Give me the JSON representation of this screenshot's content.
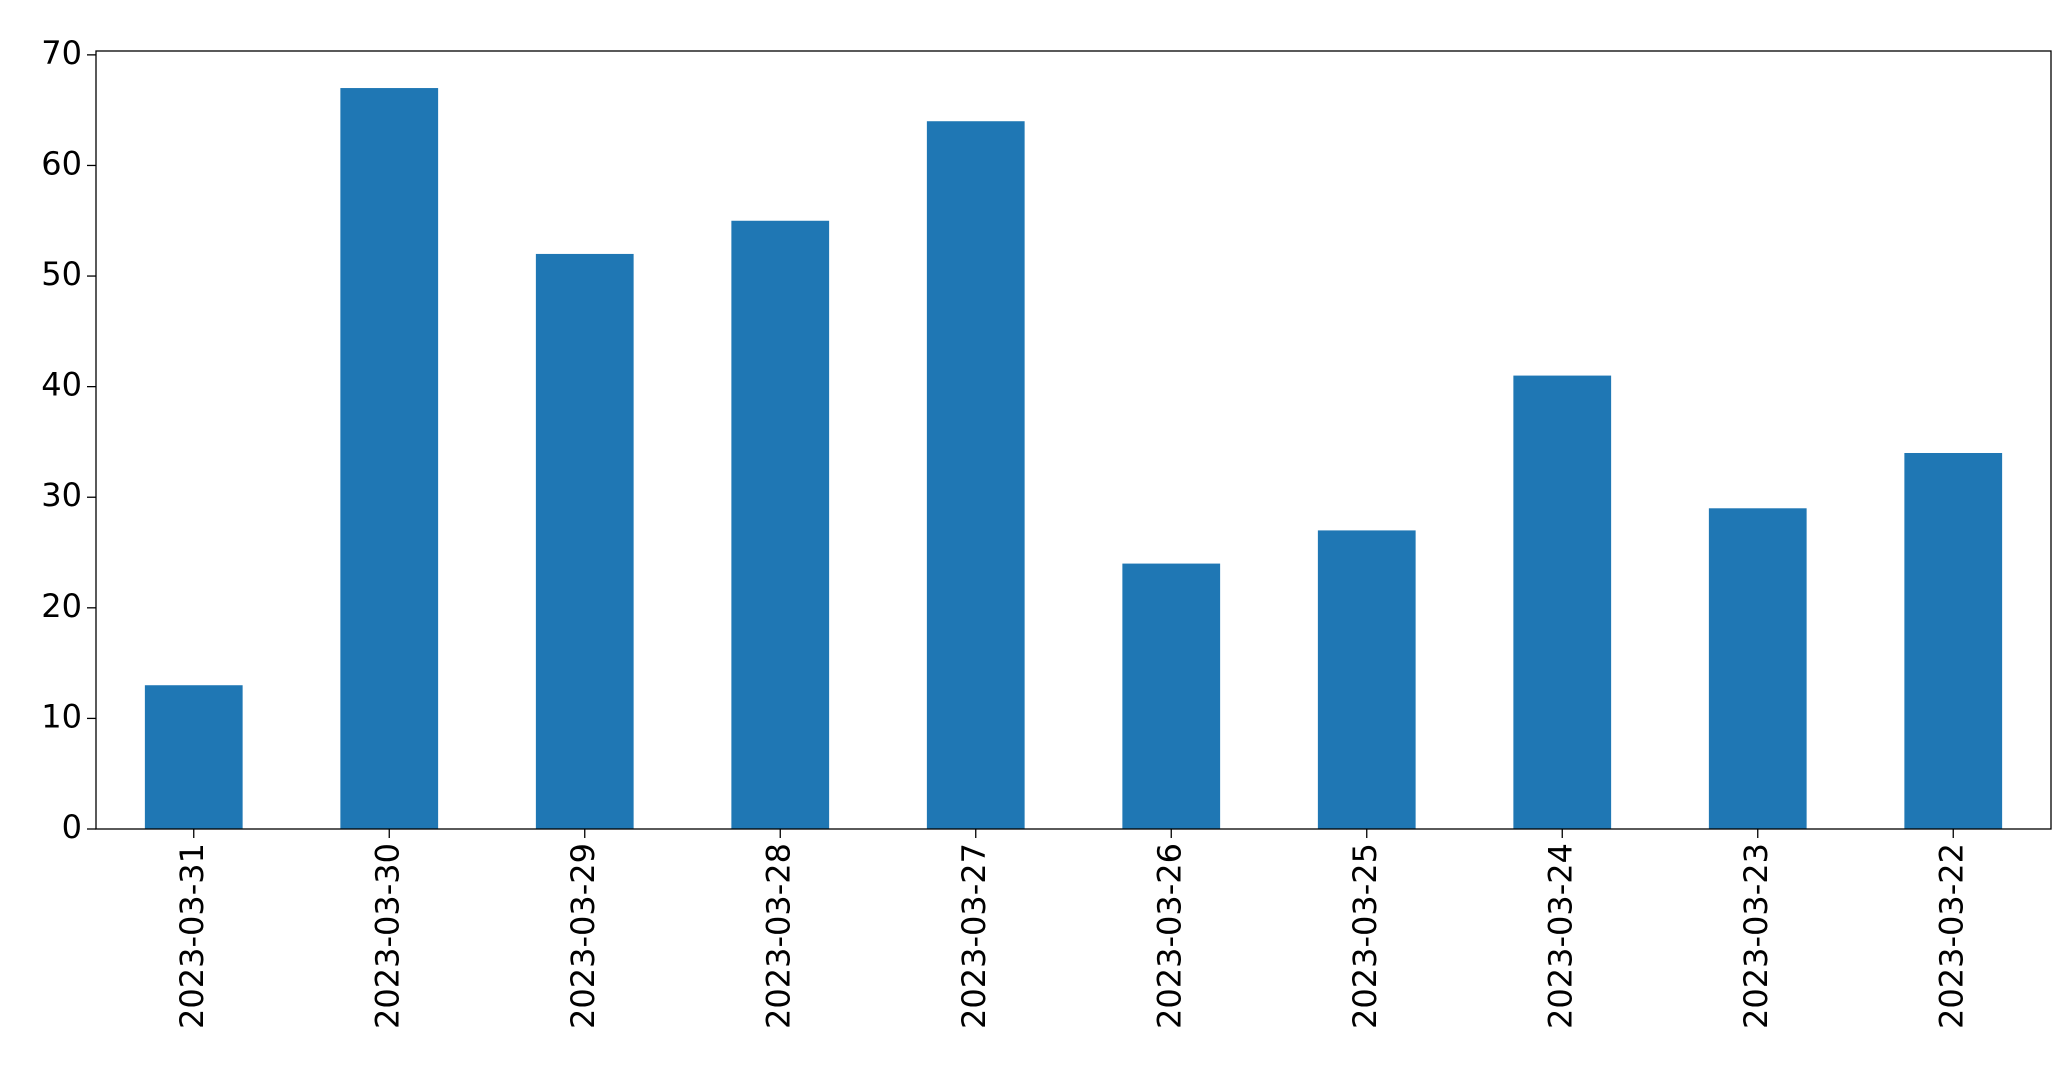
{
  "chart_data": {
    "type": "bar",
    "categories": [
      "2023-03-31",
      "2023-03-30",
      "2023-03-29",
      "2023-03-28",
      "2023-03-27",
      "2023-03-26",
      "2023-03-25",
      "2023-03-24",
      "2023-03-23",
      "2023-03-22"
    ],
    "values": [
      13,
      67,
      52,
      55,
      64,
      24,
      27,
      41,
      29,
      34
    ],
    "color": "#1f77b4",
    "ylim": [
      0,
      70.35
    ],
    "yticks": [
      0,
      10,
      20,
      30,
      40,
      50,
      60,
      70
    ],
    "grid": false
  }
}
